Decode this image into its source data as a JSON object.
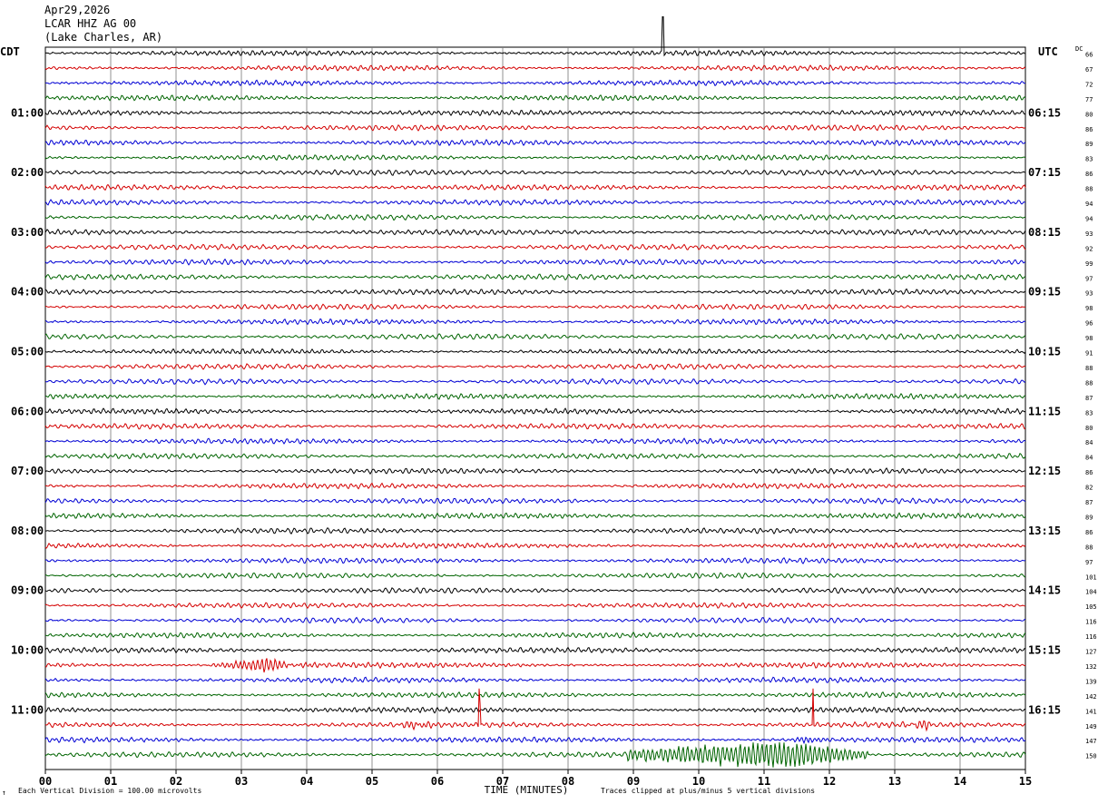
{
  "header": {
    "date": "Apr29,2026",
    "station": "LCAR HHZ AG 00",
    "location": "(Lake Charles, AR)"
  },
  "left_tz": "CDT",
  "right_tz": "UTC",
  "dc_label": "DC",
  "footer": {
    "scale": "Each Vertical Division =  100.00 microvolts",
    "clip": "Traces clipped at plus/minus 5 vertical divisions",
    "mark": "↑"
  },
  "chart_data": {
    "type": "line",
    "title": "",
    "xlabel": "TIME (MINUTES)",
    "x_ticks": [
      "00",
      "01",
      "02",
      "03",
      "04",
      "05",
      "06",
      "07",
      "08",
      "09",
      "10",
      "11",
      "12",
      "13",
      "14",
      "15"
    ],
    "xlim": [
      0,
      15
    ],
    "rows_per_hour": 4,
    "trace_colors": [
      "#000000",
      "#d40000",
      "#0000d4",
      "#006400"
    ],
    "left_hour_labels": [
      "01:00",
      "02:00",
      "03:00",
      "04:00",
      "05:00",
      "06:00",
      "07:00",
      "08:00",
      "09:00",
      "10:00",
      "11:00"
    ],
    "right_hour_labels": [
      "06:15",
      "07:15",
      "08:15",
      "09:15",
      "10:15",
      "11:15",
      "12:15",
      "13:15",
      "14:15",
      "15:15",
      "16:15"
    ],
    "dc_offsets": [
      66,
      67,
      72,
      77,
      80,
      86,
      89,
      83,
      86,
      88,
      94,
      94,
      93,
      92,
      99,
      97,
      93,
      98,
      96,
      98,
      91,
      88,
      88,
      87,
      83,
      80,
      84,
      84,
      86,
      82,
      87,
      89,
      86,
      88,
      97,
      101,
      104,
      105,
      116,
      116,
      127,
      132,
      139,
      142,
      141,
      149,
      147,
      150
    ],
    "events": [
      {
        "row": 0,
        "minute": 9.45,
        "type": "spike"
      },
      {
        "row": 41,
        "minute": 3.3,
        "type": "wave"
      },
      {
        "row": 45,
        "minute": 5.7,
        "type": "burst"
      },
      {
        "row": 45,
        "minute": 6.65,
        "type": "spike"
      },
      {
        "row": 45,
        "minute": 11.75,
        "type": "spike"
      },
      {
        "row": 45,
        "minute": 13.4,
        "type": "burst"
      },
      {
        "row": 46,
        "minute": 11.7,
        "type": "burst"
      },
      {
        "row": 47,
        "minute": 11.3,
        "type": "quake"
      }
    ]
  }
}
